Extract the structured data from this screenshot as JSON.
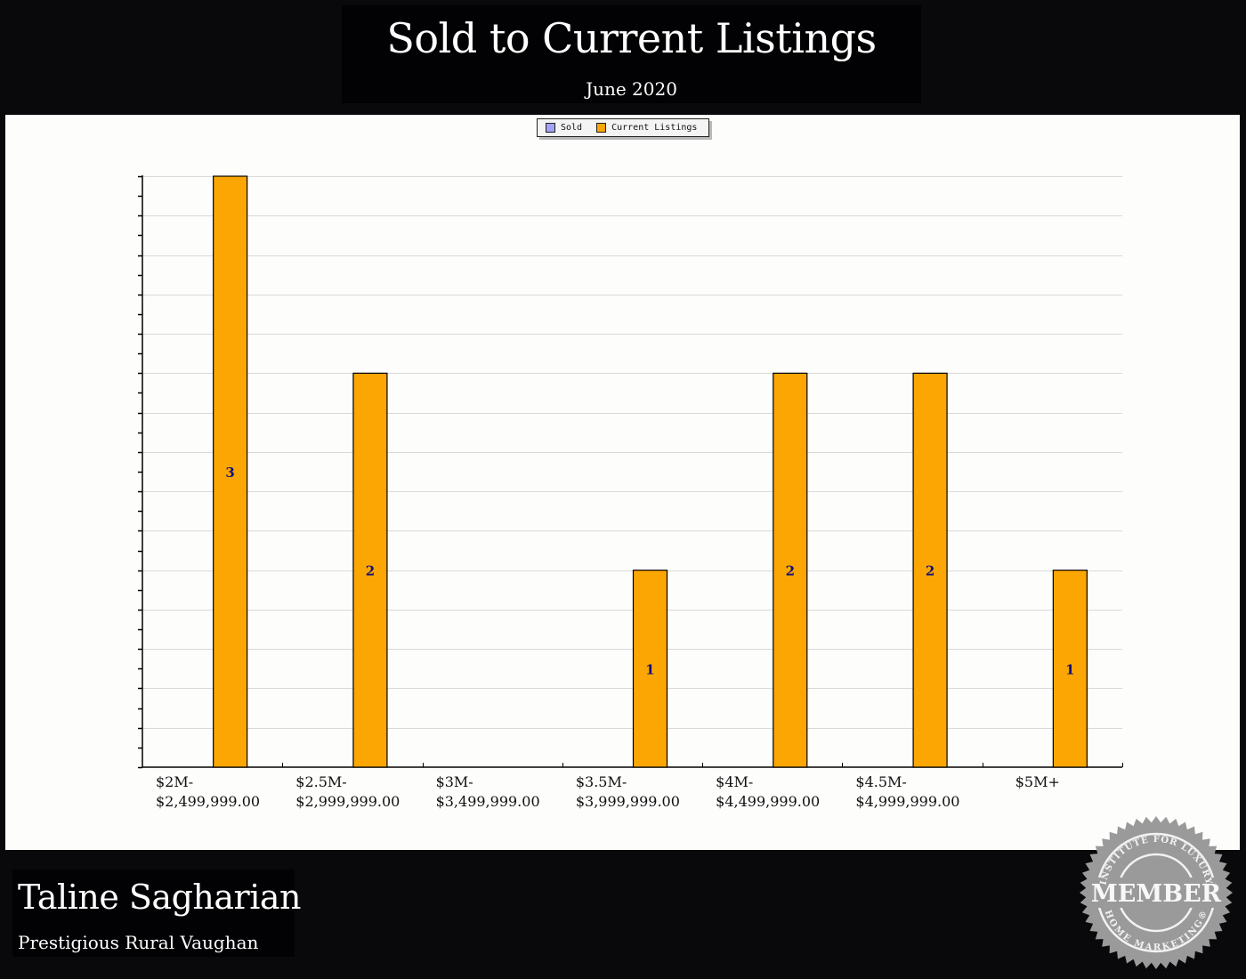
{
  "header": {
    "title": "Sold to Current Listings",
    "subtitle": "June 2020"
  },
  "legend": {
    "items": [
      {
        "label": "Sold",
        "color": "#a3a3f5"
      },
      {
        "label": "Current Listings",
        "color": "#fba602"
      }
    ]
  },
  "footer": {
    "agent_name": "Taline Sagharian",
    "company": "Prestigious Rural Vaughan",
    "badge": {
      "top_text": "INSTITUTE FOR LUXURY",
      "center_text": "MEMBER",
      "bottom_text": "HOME MARKETING®"
    }
  },
  "chart_data": {
    "type": "bar",
    "title": "Sold to Current Listings",
    "subtitle": "June 2020",
    "xlabel": "",
    "ylabel": "",
    "ylim": [
      0,
      3
    ],
    "grid": true,
    "legend_position": "top",
    "categories": [
      "$2M-\n$2,499,999.00",
      "$2.5M-\n$2,999,999.00",
      "$3M-\n$3,499,999.00",
      "$3.5M-\n$3,999,999.00",
      "$4M-\n$4,499,999.00",
      "$4.5M-\n$4,999,999.00",
      "$5M+"
    ],
    "series": [
      {
        "name": "Sold",
        "color": "#a3a3f5",
        "values": [
          0,
          0,
          0,
          0,
          0,
          0,
          0
        ]
      },
      {
        "name": "Current Listings",
        "color": "#fba602",
        "values": [
          3,
          2,
          0,
          1,
          2,
          2,
          1
        ]
      }
    ],
    "data_labels": [
      "3",
      "2",
      "",
      "1",
      "2",
      "2",
      "1"
    ]
  }
}
